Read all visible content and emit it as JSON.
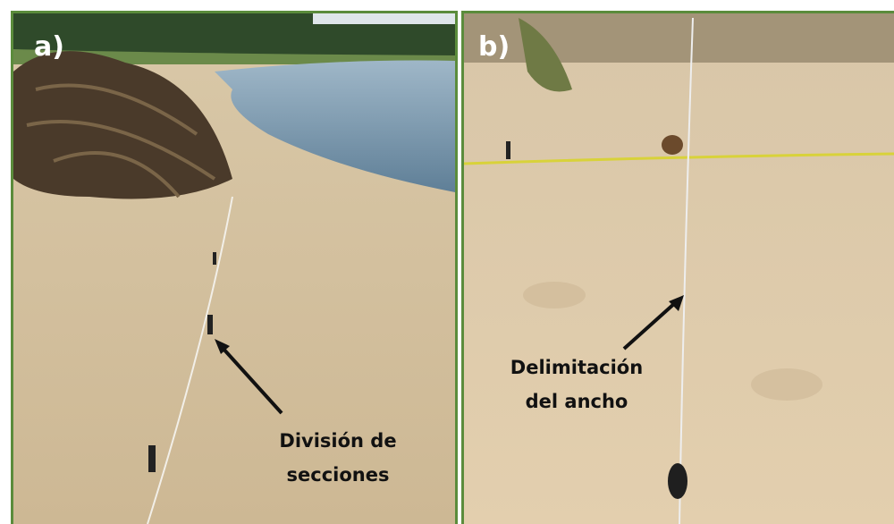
{
  "panels": [
    {
      "label": "a)",
      "annotation": [
        "División de",
        "secciones"
      ]
    },
    {
      "label": "b)",
      "annotation": [
        "Delimitación",
        "del ancho"
      ]
    }
  ]
}
